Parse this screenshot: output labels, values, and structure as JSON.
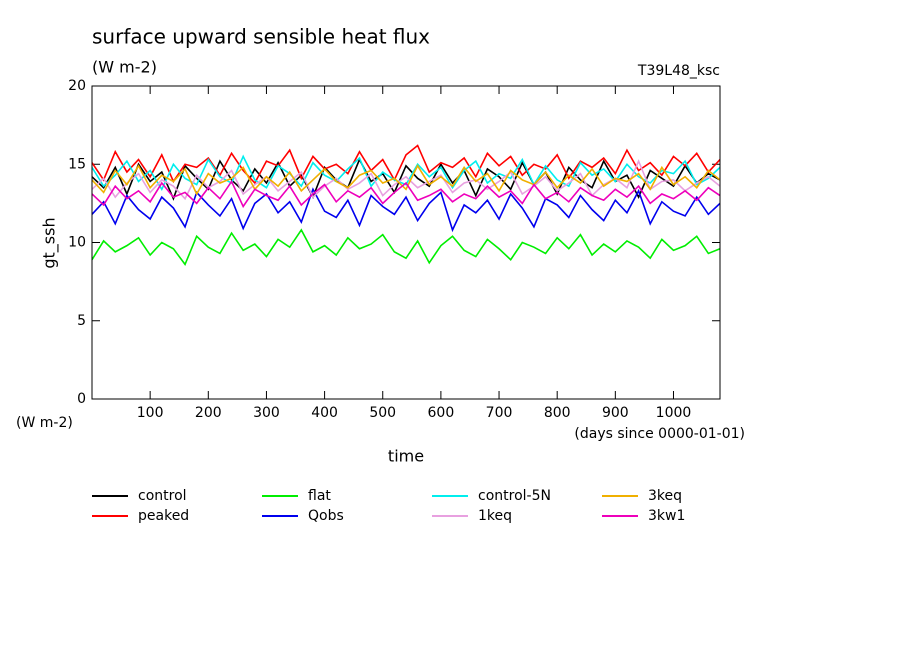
{
  "chart_data": {
    "type": "line",
    "title": "surface upward sensible heat flux",
    "subtitle": "(W m-2)",
    "annotation": "T39L48_ksc",
    "y_label": "gt_ssh",
    "y_unit": "(W m-2)",
    "x_label": "time",
    "x_unit": "(days since 0000-01-01)",
    "xlim": [
      0,
      1080
    ],
    "ylim": [
      0,
      20
    ],
    "xticks": [
      100,
      200,
      300,
      400,
      500,
      600,
      700,
      800,
      900,
      1000
    ],
    "yticks": [
      0,
      5,
      10,
      15,
      20
    ],
    "x": [
      0,
      20,
      40,
      60,
      80,
      100,
      120,
      140,
      160,
      180,
      200,
      220,
      240,
      260,
      280,
      300,
      320,
      340,
      360,
      380,
      400,
      420,
      440,
      460,
      480,
      500,
      520,
      540,
      560,
      580,
      600,
      620,
      640,
      660,
      680,
      700,
      720,
      740,
      760,
      780,
      800,
      820,
      840,
      860,
      880,
      900,
      920,
      940,
      960,
      980,
      1000,
      1020,
      1040,
      1060,
      1080
    ],
    "series": [
      {
        "name": "control",
        "color": "#000000",
        "values": [
          14.2,
          13.5,
          14.8,
          13.1,
          15.0,
          13.9,
          14.5,
          12.8,
          14.9,
          14.1,
          13.4,
          15.2,
          14.0,
          13.3,
          14.7,
          13.8,
          15.1,
          13.6,
          14.3,
          12.9,
          14.8,
          14.0,
          13.5,
          15.3,
          13.9,
          14.4,
          13.2,
          14.9,
          14.1,
          13.6,
          15.0,
          13.8,
          14.6,
          13.0,
          14.7,
          14.2,
          13.4,
          15.1,
          13.7,
          14.5,
          13.1,
          14.8,
          14.0,
          13.5,
          15.2,
          13.9,
          14.3,
          12.9,
          14.6,
          14.1,
          13.6,
          14.9,
          13.8,
          14.4,
          14.0
        ]
      },
      {
        "name": "peaked",
        "color": "#ff0000",
        "values": [
          15.1,
          14.0,
          15.8,
          14.5,
          15.3,
          14.2,
          15.6,
          13.9,
          15.0,
          14.8,
          15.4,
          14.3,
          15.7,
          14.6,
          13.8,
          15.2,
          14.9,
          15.9,
          14.1,
          15.5,
          14.7,
          15.0,
          14.4,
          15.8,
          14.6,
          15.3,
          14.0,
          15.6,
          16.2,
          14.5,
          15.1,
          14.8,
          15.4,
          14.2,
          15.7,
          14.9,
          15.5,
          14.3,
          15.0,
          14.7,
          15.6,
          14.1,
          15.2,
          14.8,
          15.4,
          14.4,
          15.9,
          14.6,
          15.1,
          14.3,
          15.5,
          14.9,
          15.7,
          14.5,
          15.3
        ]
      },
      {
        "name": "flat",
        "color": "#00ee00",
        "values": [
          8.9,
          10.1,
          9.4,
          9.8,
          10.3,
          9.2,
          10.0,
          9.6,
          8.6,
          10.4,
          9.7,
          9.3,
          10.6,
          9.5,
          9.9,
          9.1,
          10.2,
          9.7,
          10.8,
          9.4,
          9.8,
          9.2,
          10.3,
          9.6,
          9.9,
          10.5,
          9.4,
          9.0,
          10.1,
          8.7,
          9.8,
          10.4,
          9.5,
          9.1,
          10.2,
          9.6,
          8.9,
          10.0,
          9.7,
          9.3,
          10.3,
          9.6,
          10.5,
          9.2,
          9.9,
          9.4,
          10.1,
          9.7,
          9.0,
          10.2,
          9.5,
          9.8,
          10.4,
          9.3,
          9.6
        ]
      },
      {
        "name": "Qobs",
        "color": "#0000ee",
        "values": [
          11.8,
          12.6,
          11.2,
          13.0,
          12.1,
          11.5,
          12.9,
          12.2,
          11.0,
          13.2,
          12.4,
          11.7,
          12.8,
          10.9,
          12.5,
          13.1,
          11.9,
          12.6,
          11.3,
          13.4,
          12.0,
          11.6,
          12.7,
          11.1,
          13.0,
          12.3,
          11.8,
          12.9,
          11.4,
          12.5,
          13.2,
          10.8,
          12.4,
          11.9,
          12.7,
          11.5,
          13.1,
          12.2,
          11.0,
          12.8,
          12.4,
          11.6,
          13.0,
          12.1,
          11.4,
          12.7,
          11.9,
          13.3,
          11.2,
          12.6,
          12.0,
          11.7,
          12.9,
          11.8,
          12.5
        ]
      },
      {
        "name": "control-5N",
        "color": "#00eeee",
        "values": [
          14.8,
          13.6,
          14.3,
          15.2,
          13.9,
          14.6,
          13.4,
          15.0,
          14.1,
          13.7,
          15.3,
          14.2,
          13.8,
          15.5,
          14.0,
          13.5,
          14.9,
          14.4,
          13.6,
          15.1,
          14.3,
          13.9,
          14.7,
          15.4,
          13.6,
          14.5,
          14.0,
          13.7,
          15.0,
          14.2,
          14.8,
          13.5,
          14.6,
          15.2,
          13.8,
          14.4,
          14.1,
          15.3,
          13.7,
          14.9,
          14.0,
          13.6,
          15.1,
          14.3,
          14.7,
          13.9,
          15.0,
          14.2,
          13.8,
          14.6,
          14.4,
          15.2,
          13.7,
          14.1,
          14.8
        ]
      },
      {
        "name": "1keq",
        "color": "#e8a0e0",
        "values": [
          13.4,
          14.1,
          12.9,
          13.8,
          14.4,
          13.2,
          14.0,
          13.6,
          12.8,
          14.3,
          13.5,
          13.9,
          14.6,
          13.1,
          13.7,
          14.2,
          13.3,
          13.9,
          14.5,
          12.9,
          13.6,
          14.1,
          13.4,
          13.8,
          14.4,
          13.0,
          13.7,
          14.2,
          13.5,
          13.9,
          14.3,
          13.2,
          13.8,
          14.0,
          13.4,
          13.9,
          14.5,
          13.1,
          13.6,
          14.2,
          13.3,
          13.8,
          14.4,
          13.0,
          13.7,
          14.1,
          13.5,
          15.2,
          13.4,
          13.9,
          14.0,
          13.3,
          13.8,
          14.2,
          13.6
        ]
      },
      {
        "name": "3keq",
        "color": "#f0b000",
        "values": [
          14.0,
          13.2,
          14.6,
          13.7,
          14.9,
          13.5,
          14.3,
          13.9,
          14.7,
          13.1,
          14.4,
          13.8,
          14.1,
          14.8,
          13.4,
          14.2,
          13.6,
          14.5,
          13.3,
          14.0,
          14.7,
          13.9,
          13.5,
          14.3,
          14.6,
          13.8,
          14.1,
          13.4,
          14.9,
          13.7,
          14.2,
          13.6,
          14.8,
          13.9,
          14.4,
          13.3,
          14.6,
          14.0,
          13.7,
          14.5,
          13.5,
          14.3,
          13.8,
          14.7,
          13.6,
          14.1,
          13.9,
          14.4,
          13.4,
          14.8,
          13.7,
          14.2,
          13.5,
          14.6,
          14.0
        ]
      },
      {
        "name": "3kw1",
        "color": "#ee00bb",
        "values": [
          13.1,
          12.4,
          13.6,
          12.8,
          13.3,
          12.6,
          13.8,
          12.9,
          13.2,
          12.5,
          13.5,
          12.8,
          13.9,
          12.3,
          13.4,
          13.0,
          12.7,
          13.6,
          12.4,
          13.1,
          13.7,
          12.6,
          13.3,
          12.9,
          13.5,
          12.5,
          13.2,
          13.8,
          12.7,
          13.0,
          13.4,
          12.6,
          13.1,
          12.8,
          13.6,
          12.9,
          13.3,
          12.5,
          13.7,
          12.8,
          13.2,
          12.6,
          13.5,
          13.0,
          12.7,
          13.4,
          12.9,
          13.6,
          12.5,
          13.1,
          12.8,
          13.3,
          12.7,
          13.5,
          13.0
        ]
      }
    ]
  }
}
